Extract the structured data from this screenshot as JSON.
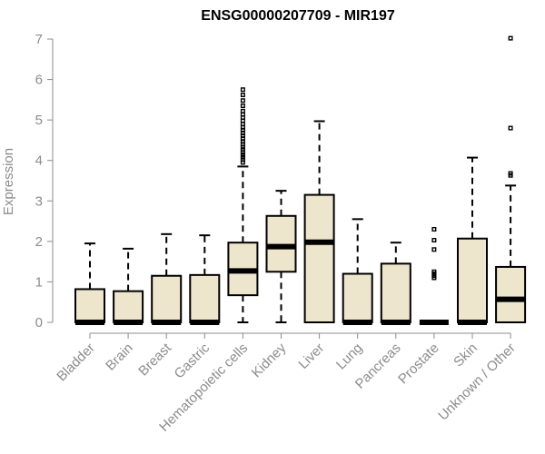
{
  "chart_data": {
    "type": "boxplot",
    "title": "ENSG00000207709 - MIR197",
    "xlabel": "",
    "ylabel": "Expression",
    "ylim": [
      0,
      7
    ],
    "yticks": [
      0,
      1,
      2,
      3,
      4,
      5,
      6,
      7
    ],
    "grid": false,
    "box_color": "#ede6cc",
    "categories": [
      "Bladder",
      "Brain",
      "Breast",
      "Gastric",
      "Hematopoietic cells",
      "Kidney",
      "Liver",
      "Lung",
      "Pancreas",
      "Prostate",
      "Skin",
      "Unknown / Other"
    ],
    "boxes": [
      {
        "whisker_low": 0,
        "q1": 0,
        "median": 0,
        "q3": 0.82,
        "whisker_high": 1.95,
        "outliers": []
      },
      {
        "whisker_low": 0,
        "q1": 0,
        "median": 0,
        "q3": 0.77,
        "whisker_high": 1.82,
        "outliers": []
      },
      {
        "whisker_low": 0,
        "q1": 0,
        "median": 0,
        "q3": 1.15,
        "whisker_high": 2.18,
        "outliers": []
      },
      {
        "whisker_low": 0,
        "q1": 0,
        "median": 0,
        "q3": 1.17,
        "whisker_high": 2.15,
        "outliers": []
      },
      {
        "whisker_low": 0,
        "q1": 0.67,
        "median": 1.27,
        "q3": 1.97,
        "whisker_high": 3.85,
        "outliers": [
          3.95,
          4.02,
          4.08,
          4.14,
          4.2,
          4.27,
          4.33,
          4.4,
          4.47,
          4.54,
          4.61,
          4.68,
          4.75,
          4.82,
          4.9,
          4.98,
          5.06,
          5.14,
          5.22,
          5.35,
          5.48,
          5.62,
          5.75
        ]
      },
      {
        "whisker_low": 0,
        "q1": 1.25,
        "median": 1.87,
        "q3": 2.63,
        "whisker_high": 3.25,
        "outliers": []
      },
      {
        "whisker_low": 0,
        "q1": 0,
        "median": 1.98,
        "q3": 3.15,
        "whisker_high": 4.97,
        "outliers": []
      },
      {
        "whisker_low": 0,
        "q1": 0,
        "median": 0,
        "q3": 1.2,
        "whisker_high": 2.55,
        "outliers": []
      },
      {
        "whisker_low": 0,
        "q1": 0,
        "median": 0,
        "q3": 1.45,
        "whisker_high": 1.97,
        "outliers": []
      },
      {
        "whisker_low": 0,
        "q1": 0,
        "median": 0,
        "q3": 0,
        "whisker_high": 0,
        "outliers": [
          1.1,
          1.15,
          1.2,
          1.25,
          1.8,
          2.03,
          2.3
        ]
      },
      {
        "whisker_low": 0,
        "q1": 0,
        "median": 0,
        "q3": 2.07,
        "whisker_high": 4.07,
        "outliers": []
      },
      {
        "whisker_low": 0,
        "q1": 0,
        "median": 0.57,
        "q3": 1.37,
        "whisker_high": 3.38,
        "outliers": [
          3.63,
          3.68,
          4.8,
          7.02
        ]
      }
    ]
  }
}
